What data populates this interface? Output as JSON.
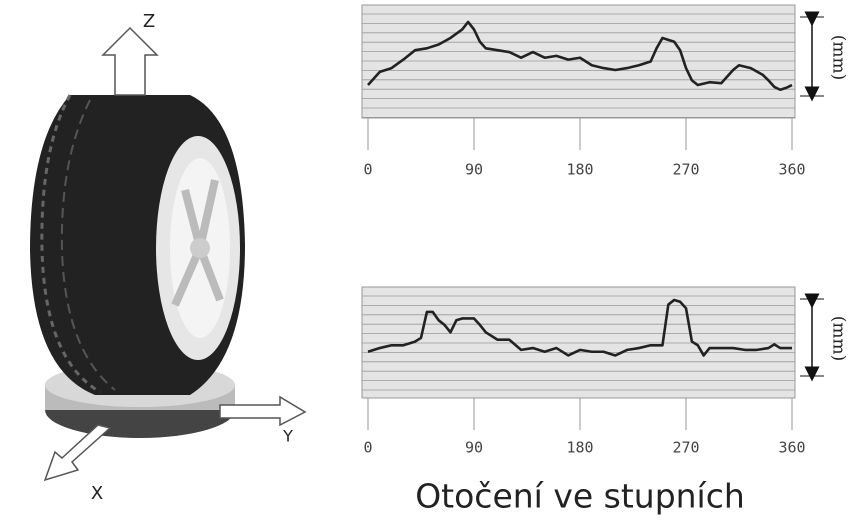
{
  "illustration": {
    "axis_labels": [
      "Z",
      "Y",
      "X"
    ]
  },
  "chart_data": [
    {
      "type": "line",
      "ylabel": "(mm)",
      "xlim": [
        0,
        360
      ],
      "xticks": [
        0,
        90,
        180,
        270,
        360
      ],
      "ylim": [
        0,
        12
      ],
      "color": "#222222",
      "x": [
        0,
        10,
        20,
        30,
        40,
        50,
        60,
        70,
        80,
        85,
        90,
        95,
        100,
        110,
        120,
        130,
        140,
        150,
        160,
        170,
        180,
        190,
        200,
        210,
        220,
        230,
        240,
        245,
        250,
        260,
        265,
        270,
        275,
        280,
        290,
        300,
        310,
        315,
        325,
        335,
        340,
        345,
        350,
        355,
        360
      ],
      "values": [
        3.5,
        4.9,
        5.3,
        6.2,
        7.2,
        7.4,
        7.8,
        8.5,
        9.4,
        10.2,
        9.4,
        8.1,
        7.4,
        7.2,
        7.0,
        6.4,
        7.0,
        6.4,
        6.6,
        6.2,
        6.4,
        5.6,
        5.3,
        5.1,
        5.3,
        5.6,
        6.0,
        7.4,
        8.5,
        8.1,
        7.2,
        5.3,
        4.0,
        3.5,
        3.8,
        3.7,
        5.1,
        5.6,
        5.3,
        4.6,
        4.0,
        3.3,
        3.0,
        3.2,
        3.5
      ]
    },
    {
      "type": "line",
      "ylabel": "(mm)",
      "xlabel": "Otočení ve stupních",
      "xlim": [
        0,
        360
      ],
      "xticks": [
        0,
        90,
        180,
        270,
        360
      ],
      "ylim": [
        0,
        12
      ],
      "color": "#222222",
      "x": [
        0,
        10,
        20,
        30,
        40,
        45,
        50,
        55,
        60,
        65,
        70,
        75,
        80,
        90,
        95,
        100,
        110,
        120,
        130,
        140,
        150,
        160,
        170,
        180,
        190,
        200,
        210,
        220,
        230,
        240,
        250,
        255,
        260,
        265,
        270,
        275,
        280,
        285,
        290,
        300,
        310,
        320,
        330,
        340,
        345,
        350,
        360
      ],
      "values": [
        5.0,
        5.4,
        5.7,
        5.7,
        6.1,
        6.5,
        9.3,
        9.3,
        8.4,
        7.9,
        7.1,
        8.4,
        8.6,
        8.6,
        7.9,
        7.1,
        6.3,
        6.3,
        5.2,
        5.4,
        5.0,
        5.4,
        4.6,
        5.2,
        5.0,
        5.0,
        4.6,
        5.2,
        5.4,
        5.7,
        5.7,
        10.1,
        10.6,
        10.4,
        9.7,
        6.1,
        5.7,
        4.6,
        5.4,
        5.4,
        5.4,
        5.2,
        5.2,
        5.4,
        5.8,
        5.4,
        5.4
      ]
    }
  ]
}
